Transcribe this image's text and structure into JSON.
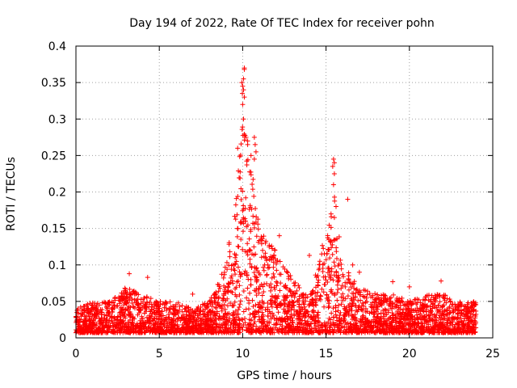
{
  "chart_data": {
    "type": "scatter",
    "title": "Day 194 of 2022, Rate Of TEC Index for receiver pohn",
    "xlabel": "GPS time / hours",
    "ylabel": "ROTI / TECUs",
    "xlim": [
      0,
      25
    ],
    "ylim": [
      0,
      0.4
    ],
    "x_ticks": [
      0,
      5,
      10,
      15,
      20,
      25
    ],
    "x_tick_labels": [
      "0",
      "5",
      "10",
      "15",
      "20",
      "25"
    ],
    "y_ticks": [
      0,
      0.05,
      0.1,
      0.15,
      0.2,
      0.25,
      0.3,
      0.35,
      0.4
    ],
    "y_tick_labels": [
      "0",
      "0.05",
      "0.1",
      "0.15",
      "0.2",
      "0.25",
      "0.3",
      "0.35",
      "0.4"
    ],
    "grid": true,
    "marker": "+",
    "color": "#ff0000",
    "envelope": [
      [
        0,
        0.04
      ],
      [
        1,
        0.05
      ],
      [
        2,
        0.05
      ],
      [
        3,
        0.07
      ],
      [
        4,
        0.06
      ],
      [
        5,
        0.05
      ],
      [
        6,
        0.05
      ],
      [
        7,
        0.04
      ],
      [
        8,
        0.05
      ],
      [
        9,
        0.1
      ],
      [
        9.6,
        0.2
      ],
      [
        10,
        0.3
      ],
      [
        10.6,
        0.23
      ],
      [
        11,
        0.15
      ],
      [
        12,
        0.12
      ],
      [
        13,
        0.08
      ],
      [
        14,
        0.06
      ],
      [
        15,
        0.15
      ],
      [
        15.5,
        0.2
      ],
      [
        16,
        0.1
      ],
      [
        17,
        0.07
      ],
      [
        18,
        0.06
      ],
      [
        19,
        0.06
      ],
      [
        20,
        0.05
      ],
      [
        21,
        0.06
      ],
      [
        22,
        0.06
      ],
      [
        23,
        0.05
      ],
      [
        24,
        0.05
      ]
    ],
    "notable_points": [
      {
        "x": 10.1,
        "y": 0.37
      },
      {
        "x": 10.1,
        "y": 0.368
      },
      {
        "x": 10.05,
        "y": 0.355
      },
      {
        "x": 9.95,
        "y": 0.35
      },
      {
        "x": 10.0,
        "y": 0.345
      },
      {
        "x": 10.05,
        "y": 0.34
      },
      {
        "x": 9.98,
        "y": 0.335
      },
      {
        "x": 10.1,
        "y": 0.33
      },
      {
        "x": 10.0,
        "y": 0.32
      },
      {
        "x": 10.05,
        "y": 0.3
      },
      {
        "x": 10.2,
        "y": 0.275
      },
      {
        "x": 10.3,
        "y": 0.27
      },
      {
        "x": 10.3,
        "y": 0.265
      },
      {
        "x": 10.7,
        "y": 0.275
      },
      {
        "x": 10.75,
        "y": 0.265
      },
      {
        "x": 9.7,
        "y": 0.26
      },
      {
        "x": 10.8,
        "y": 0.255
      },
      {
        "x": 10.5,
        "y": 0.25
      },
      {
        "x": 10.7,
        "y": 0.245
      },
      {
        "x": 15.45,
        "y": 0.245
      },
      {
        "x": 15.5,
        "y": 0.24
      },
      {
        "x": 15.4,
        "y": 0.235
      },
      {
        "x": 15.5,
        "y": 0.225
      },
      {
        "x": 15.45,
        "y": 0.21
      },
      {
        "x": 16.3,
        "y": 0.19
      },
      {
        "x": 15.6,
        "y": 0.18
      },
      {
        "x": 15.3,
        "y": 0.17
      },
      {
        "x": 15.5,
        "y": 0.165
      },
      {
        "x": 12.2,
        "y": 0.14
      },
      {
        "x": 14.0,
        "y": 0.113
      },
      {
        "x": 3.2,
        "y": 0.088
      },
      {
        "x": 4.3,
        "y": 0.083
      },
      {
        "x": 7.0,
        "y": 0.06
      },
      {
        "x": 19.0,
        "y": 0.077
      },
      {
        "x": 21.9,
        "y": 0.078
      },
      {
        "x": 20.0,
        "y": 0.07
      },
      {
        "x": 16.6,
        "y": 0.1
      },
      {
        "x": 17.0,
        "y": 0.09
      }
    ]
  }
}
